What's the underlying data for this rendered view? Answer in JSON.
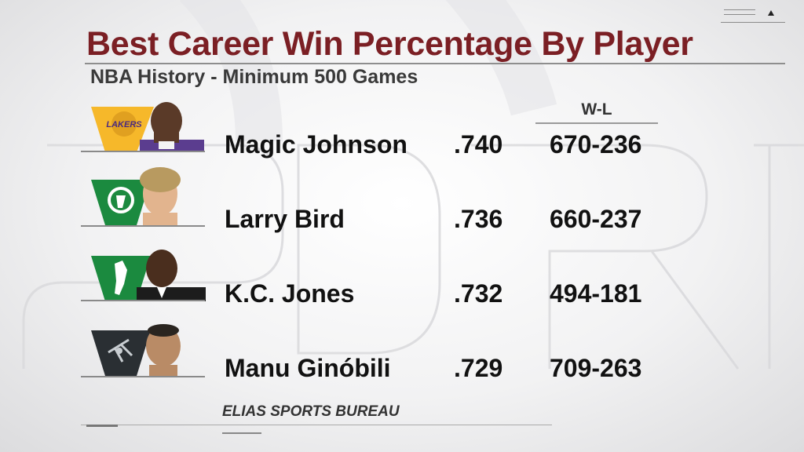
{
  "chart_data": {
    "type": "table",
    "title": "Best Career Win Percentage By Player",
    "subtitle": "NBA History - Minimum 500 Games",
    "columns": [
      "",
      "",
      "W-L"
    ],
    "rows": [
      {
        "player": "Magic Johnson",
        "win_pct": ".740",
        "wl": "670-236",
        "team": "Lakers",
        "team_color": "#f6b82a",
        "team_icon": "lakers-logo"
      },
      {
        "player": "Larry Bird",
        "win_pct": ".736",
        "wl": "660-237",
        "team": "Celtics",
        "team_color": "#1b8a3f",
        "team_icon": "celtics-logo"
      },
      {
        "player": "K.C. Jones",
        "win_pct": ".732",
        "wl": "494-181",
        "team": "Celtics",
        "team_color": "#1b8a3f",
        "team_icon": "celtics-logo"
      },
      {
        "player": "Manu Ginóbili",
        "win_pct": ".729",
        "wl": "709-263",
        "team": "Spurs",
        "team_color": "#2a2f33",
        "team_icon": "spurs-logo"
      }
    ],
    "source": "ELIAS SPORTS BUREAU"
  },
  "colors": {
    "title": "#7b1f24",
    "text": "#111111"
  }
}
